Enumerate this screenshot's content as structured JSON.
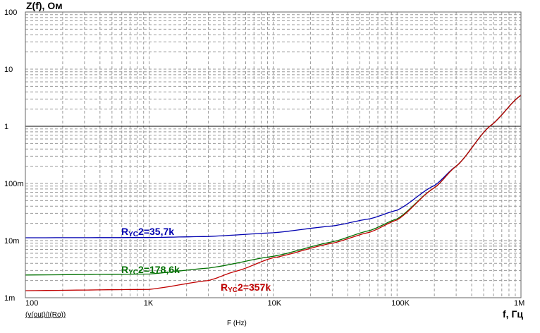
{
  "chart_data": {
    "type": "line",
    "title": "Z(f), Ом",
    "xlabel": "f, Гц",
    "xaxis_caption": "F (Hz)",
    "trace_name": "(v(out)/I(Ro))",
    "xscale": "log",
    "yscale": "log",
    "xlim": [
      100,
      1000000
    ],
    "ylim": [
      0.001,
      100
    ],
    "x_ticks": [
      {
        "v": 100,
        "t": "100"
      },
      {
        "v": 1000,
        "t": "1K"
      },
      {
        "v": 10000,
        "t": "10K"
      },
      {
        "v": 100000,
        "t": "100K"
      },
      {
        "v": 1000000,
        "t": "1M"
      }
    ],
    "y_ticks": [
      {
        "v": 100,
        "t": "100"
      },
      {
        "v": 10,
        "t": "10"
      },
      {
        "v": 1,
        "t": "1"
      },
      {
        "v": 0.1,
        "t": "100m"
      },
      {
        "v": 0.01,
        "t": "10m"
      },
      {
        "v": 0.001,
        "t": "1m"
      }
    ],
    "grid": true,
    "series": [
      {
        "name": "Rус2=35,7k",
        "label_main": "R",
        "label_sub": "YC",
        "label_rest": "2=35,7k",
        "color": "#0000b0",
        "x": [
          100,
          1000,
          3000,
          10000,
          30000,
          60000,
          100000,
          200000,
          300000,
          560000,
          1000000
        ],
        "y": [
          0.0112,
          0.0113,
          0.0118,
          0.0137,
          0.018,
          0.024,
          0.034,
          0.092,
          0.2,
          1.0,
          3.5
        ]
      },
      {
        "name": "Rус2=178,6k",
        "label_main": "R",
        "label_sub": "YC",
        "label_rest": "2=178,6k",
        "color": "#007000",
        "x": [
          100,
          1000,
          3000,
          10000,
          30000,
          60000,
          100000,
          200000,
          300000,
          560000,
          1000000
        ],
        "y": [
          0.0025,
          0.0026,
          0.0033,
          0.0053,
          0.0095,
          0.015,
          0.024,
          0.084,
          0.2,
          1.0,
          3.5
        ]
      },
      {
        "name": "Rус2=357k",
        "label_main": "R",
        "label_sub": "YC",
        "label_rest": "2=357k",
        "color": "#c00000",
        "x": [
          100,
          1000,
          3000,
          5000,
          10000,
          30000,
          60000,
          100000,
          200000,
          300000,
          560000,
          1000000
        ],
        "y": [
          0.00133,
          0.0014,
          0.002,
          0.0029,
          0.005,
          0.009,
          0.014,
          0.023,
          0.084,
          0.2,
          1.0,
          3.5
        ]
      }
    ]
  }
}
